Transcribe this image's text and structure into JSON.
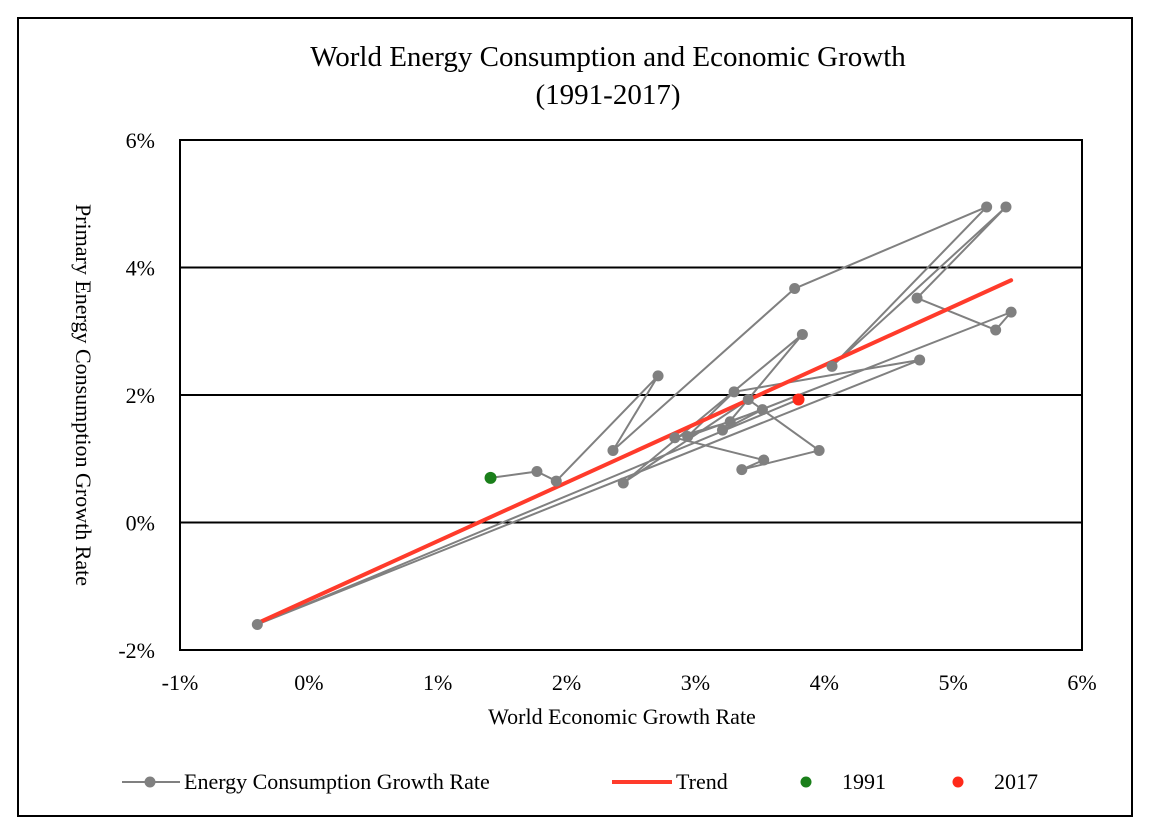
{
  "chart_data": {
    "type": "scatter",
    "title": "World Energy Consumption and Economic Growth",
    "subtitle": "(1991-2017)",
    "xlabel": "World Economic Growth Rate",
    "ylabel": "Primary Energy Consumption Growth Rate",
    "xlim": [
      -1,
      6
    ],
    "ylim": [
      -2,
      6
    ],
    "x_ticks": [
      -1,
      0,
      1,
      2,
      3,
      4,
      5,
      6
    ],
    "x_tick_labels": [
      "-1%",
      "0%",
      "1%",
      "2%",
      "3%",
      "4%",
      "5%",
      "6%"
    ],
    "y_ticks": [
      -2,
      0,
      2,
      4,
      6
    ],
    "y_tick_labels": [
      "-2%",
      "0%",
      "2%",
      "4%",
      "6%"
    ],
    "gridlines_y": [
      0,
      2,
      4
    ],
    "series": [
      {
        "name": "Energy Consumption Growth Rate",
        "color": "#808080",
        "style": "line-markers",
        "x": [
          1.41,
          1.77,
          1.92,
          2.71,
          2.36,
          3.77,
          5.26,
          4.06,
          5.41,
          4.72,
          5.33,
          5.45,
          3.27,
          2.84,
          3.53,
          3.36,
          3.96,
          3.41,
          2.44,
          3.83,
          3.21,
          3.52,
          2.94,
          3.3,
          4.74,
          -0.4,
          3.8
        ],
        "y": [
          0.7,
          0.8,
          0.65,
          2.3,
          1.13,
          3.67,
          4.95,
          2.45,
          4.95,
          3.52,
          3.02,
          3.3,
          1.58,
          1.33,
          0.98,
          0.83,
          1.13,
          1.93,
          0.62,
          2.95,
          1.45,
          1.77,
          1.35,
          2.05,
          2.55,
          -1.6,
          1.93
        ]
      },
      {
        "name": "Trend",
        "color": "#ff3b2b",
        "style": "line",
        "x": [
          -0.4,
          5.45
        ],
        "y": [
          -1.58,
          3.8
        ]
      },
      {
        "name": "1991",
        "color": "#1a7f1a",
        "style": "marker",
        "x": [
          1.41
        ],
        "y": [
          0.7
        ]
      },
      {
        "name": "2017",
        "color": "#ff2a1a",
        "style": "marker",
        "x": [
          3.8
        ],
        "y": [
          1.93
        ]
      }
    ],
    "legend_position": "bottom",
    "legend": [
      "Energy Consumption Growth Rate",
      "Trend",
      "1991",
      "2017"
    ]
  }
}
